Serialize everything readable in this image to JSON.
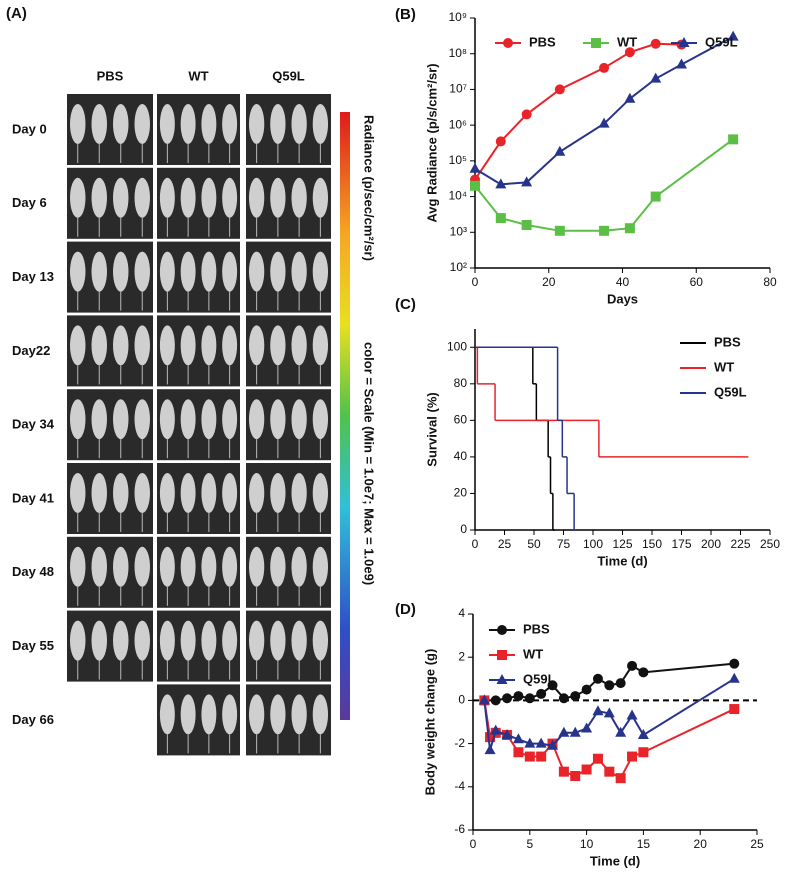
{
  "panel_a": {
    "panel_label": "(A)",
    "columns": [
      "PBS",
      "WT",
      "Q59L"
    ],
    "rows": [
      "Day 0",
      "Day 6",
      "Day 13",
      "Day22",
      "Day 34",
      "Day 41",
      "Day 48",
      "Day 55",
      "Day 66"
    ],
    "colorbar_label": "Radiance (p/sec/cm²/sr)",
    "colorbar_scale": "color = Scale (Min = 1.0e7; Max = 1.0e9)"
  },
  "chart_data": [
    {
      "type": "line",
      "panel_label": "(B)",
      "y_label": "Avg Radiance (p/s/cm²/sr)",
      "x_label": "Days",
      "log_y": true,
      "legend": "top",
      "xlim": [
        0,
        80
      ],
      "xticks": [
        0,
        20,
        40,
        60,
        80
      ],
      "ylim": [
        100,
        1000000000
      ],
      "yticks": [
        {
          "value": 100,
          "label": "10²"
        },
        {
          "value": 1000,
          "label": "10³"
        },
        {
          "value": 10000,
          "label": "10⁴"
        },
        {
          "value": 100000,
          "label": "10⁵"
        },
        {
          "value": 1000000,
          "label": "10⁶"
        },
        {
          "value": 10000000,
          "label": "10⁷"
        },
        {
          "value": 100000000,
          "label": "10⁸"
        },
        {
          "value": 1000000000,
          "label": "10⁹"
        }
      ],
      "series": [
        {
          "name": "PBS",
          "color": "#e8242a",
          "marker": "circle",
          "x": [
            0,
            7,
            14,
            23,
            35,
            42,
            49,
            56
          ],
          "values": [
            30000,
            350000,
            2000000,
            10000000,
            40000000,
            110000000,
            190000000,
            180000000
          ]
        },
        {
          "name": "WT",
          "color": "#5cbf45",
          "marker": "square",
          "x": [
            0,
            7,
            14,
            23,
            35,
            42,
            49,
            70
          ],
          "values": [
            20000,
            2500,
            1600,
            1100,
            1100,
            1300,
            10000,
            400000
          ]
        },
        {
          "name": "Q59L",
          "color": "#27348b",
          "marker": "triangle",
          "x": [
            0,
            7,
            14,
            23,
            35,
            42,
            49,
            56,
            70
          ],
          "values": [
            60000,
            22000,
            25000,
            180000,
            1100000,
            5500000,
            20000000,
            50000000,
            300000000
          ]
        }
      ]
    },
    {
      "type": "step",
      "panel_label": "(C)",
      "y_label": "Survival (%)",
      "x_label": "Time (d)",
      "legend": "upper right",
      "xlim": [
        0,
        250
      ],
      "xticks": [
        0,
        25,
        50,
        75,
        100,
        125,
        150,
        175,
        200,
        225,
        250
      ],
      "ylim": [
        0,
        110
      ],
      "yticks": [
        0,
        20,
        40,
        60,
        80,
        100
      ],
      "series": [
        {
          "name": "PBS",
          "color": "#000000",
          "x": [
            0,
            49,
            52,
            62,
            64,
            66
          ],
          "values": [
            100,
            80,
            60,
            40,
            20,
            0
          ]
        },
        {
          "name": "WT",
          "color": "#e8242a",
          "x": [
            0,
            2,
            17,
            105,
            230
          ],
          "values": [
            100,
            80,
            60,
            40,
            40
          ]
        },
        {
          "name": "Q59L",
          "color": "#27348b",
          "x": [
            0,
            70,
            74,
            78,
            84
          ],
          "values": [
            100,
            60,
            40,
            20,
            0
          ]
        }
      ]
    },
    {
      "type": "line",
      "panel_label": "(D)",
      "y_label": "Body weight change (g)",
      "x_label": "Time (d)",
      "legend": "upper left",
      "xlim": [
        0,
        25
      ],
      "xticks": [
        0,
        5,
        10,
        15,
        20,
        25
      ],
      "ylim": [
        -6,
        4
      ],
      "yticks": [
        -6,
        -4,
        -2,
        0,
        2,
        4
      ],
      "zero_line": true,
      "series": [
        {
          "name": "PBS",
          "color": "#111111",
          "marker": "circle",
          "x": [
            1,
            2,
            3,
            4,
            5,
            6,
            7,
            8,
            9,
            10,
            11,
            12,
            13,
            14,
            15,
            23
          ],
          "values": [
            0,
            0,
            0.1,
            0.2,
            0.1,
            0.3,
            0.7,
            0.1,
            0.2,
            0.5,
            1.0,
            0.7,
            0.8,
            1.6,
            1.3,
            1.7
          ]
        },
        {
          "name": "WT",
          "color": "#e8242a",
          "marker": "square",
          "x": [
            1,
            1.5,
            2,
            3,
            4,
            5,
            6,
            7,
            8,
            9,
            10,
            11,
            12,
            13,
            14,
            15,
            23
          ],
          "values": [
            0,
            -1.7,
            -1.5,
            -1.6,
            -2.4,
            -2.6,
            -2.6,
            -2.0,
            -3.3,
            -3.5,
            -3.2,
            -2.7,
            -3.3,
            -3.6,
            -2.6,
            -2.4,
            -0.4
          ]
        },
        {
          "name": "Q59L",
          "color": "#27348b",
          "marker": "triangle",
          "x": [
            1,
            1.5,
            2,
            3,
            4,
            5,
            6,
            7,
            8,
            9,
            10,
            11,
            12,
            13,
            14,
            15,
            23
          ],
          "values": [
            0,
            -2.3,
            -1.4,
            -1.6,
            -1.8,
            -2.0,
            -2.0,
            -2.1,
            -1.5,
            -1.5,
            -1.3,
            -0.5,
            -0.6,
            -1.5,
            -0.7,
            -1.6,
            1.0
          ]
        }
      ]
    }
  ]
}
